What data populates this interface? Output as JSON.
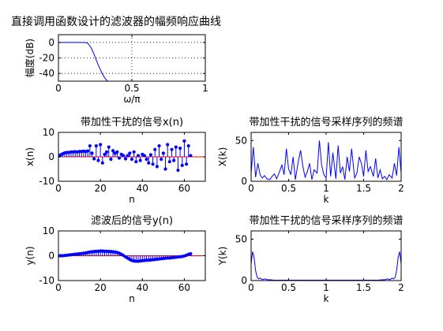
{
  "figure": {
    "suptitle": "直接调用函数设计的滤波器的幅频响应曲线"
  },
  "chart_data": [
    {
      "type": "line",
      "title": "",
      "xlabel": "ω/π",
      "ylabel": "幅度(dB)",
      "xlim": [
        0,
        1
      ],
      "ylim": [
        -50,
        10
      ],
      "xticks": [
        0,
        0.5,
        1
      ],
      "xtick_labels": [
        "0",
        "0.5",
        "1"
      ],
      "yticks": [
        0,
        -20,
        -40
      ],
      "ytick_labels": [
        "0",
        "-20",
        "-40"
      ],
      "grid": true,
      "line_color": "#0000ff",
      "series": [
        {
          "x": [
            0,
            0.02,
            0.06,
            0.1,
            0.14,
            0.18,
            0.2,
            0.22,
            0.24,
            0.26,
            0.28,
            0.3,
            0.32,
            0.34
          ],
          "y": [
            0,
            0,
            0,
            0,
            0,
            0,
            -1,
            -6,
            -14,
            -24,
            -33,
            -41,
            -47,
            -51
          ]
        }
      ]
    },
    {
      "type": "stem",
      "title": "带加性干扰的信号x(n)",
      "xlabel": "n",
      "ylabel": "x(n)",
      "xlim": [
        0,
        70
      ],
      "ylim": [
        -10,
        10
      ],
      "xticks": [
        0,
        20,
        40,
        60
      ],
      "xtick_labels": [
        "0",
        "20",
        "40",
        "60"
      ],
      "yticks": [
        -10,
        0,
        10
      ],
      "ytick_labels": [
        "-10",
        "0",
        "10"
      ],
      "stem_color": "#0000ff",
      "baseline_color": "#ff0000",
      "x": [
        0,
        1,
        2,
        3,
        4,
        5,
        6,
        7,
        8,
        9,
        10,
        11,
        12,
        13,
        14,
        15,
        16,
        17,
        18,
        19,
        20,
        21,
        22,
        23,
        24,
        25,
        26,
        27,
        28,
        29,
        30,
        31,
        32,
        33,
        34,
        35,
        36,
        37,
        38,
        39,
        40,
        41,
        42,
        43,
        44,
        45,
        46,
        47,
        48,
        49,
        50,
        51,
        52,
        53,
        54,
        55,
        56,
        57,
        58,
        59,
        60,
        61,
        62,
        63
      ],
      "values": [
        0.3,
        0.8,
        1.2,
        1.6,
        1.8,
        1.8,
        2.0,
        2.0,
        2.1,
        2.0,
        2.2,
        2.2,
        2.3,
        2.2,
        2.4,
        4.5,
        1.5,
        -0.8,
        4.5,
        -1.5,
        5.0,
        -2.5,
        1.0,
        2.0,
        4.0,
        -1.0,
        2.5,
        1.5,
        2.0,
        -0.5,
        1.0,
        0.5,
        -0.8,
        0.5,
        1.5,
        -1.0,
        2.0,
        -2.0,
        0.5,
        -1.5,
        1.0,
        0.5,
        -1.0,
        -2.5,
        0.8,
        -3.0,
        3.0,
        -4.0,
        4.5,
        -1.0,
        1.5,
        -5.0,
        5.0,
        -2.0,
        3.0,
        -1.5,
        4.0,
        -5.5,
        3.5,
        -3.5,
        6.5,
        -3.0,
        4.5,
        0.5
      ]
    },
    {
      "type": "line",
      "title": "带加性干扰的信号采样序列的频谱",
      "xlabel": "k",
      "ylabel": "X(k)",
      "xlim": [
        0,
        2
      ],
      "ylim": [
        0,
        60
      ],
      "xticks": [
        0,
        0.5,
        1,
        1.5,
        2
      ],
      "xtick_labels": [
        "0",
        "0.5",
        "1",
        "1.5",
        "2"
      ],
      "yticks": [
        0,
        50
      ],
      "ytick_labels": [
        "0",
        "50"
      ],
      "line_color": "#0000ff",
      "series": [
        {
          "x": [
            0,
            0.03,
            0.06,
            0.09,
            0.12,
            0.15,
            0.18,
            0.21,
            0.25,
            0.28,
            0.31,
            0.34,
            0.38,
            0.41,
            0.44,
            0.47,
            0.5,
            0.53,
            0.56,
            0.59,
            0.63,
            0.66,
            0.69,
            0.72,
            0.75,
            0.78,
            0.81,
            0.84,
            0.88,
            0.91,
            0.94,
            0.97,
            1.0,
            1.03,
            1.06,
            1.09,
            1.13,
            1.16,
            1.19,
            1.22,
            1.25,
            1.28,
            1.31,
            1.34,
            1.38,
            1.41,
            1.44,
            1.47,
            1.5,
            1.53,
            1.56,
            1.59,
            1.63,
            1.66,
            1.69,
            1.72,
            1.75,
            1.78,
            1.81,
            1.84,
            1.88,
            1.91,
            1.94,
            1.97,
            2.0
          ],
          "y": [
            10,
            42,
            5,
            22,
            8,
            4,
            7,
            3,
            2,
            6,
            9,
            3,
            12,
            20,
            8,
            40,
            15,
            8,
            30,
            2,
            25,
            38,
            18,
            5,
            12,
            22,
            2,
            14,
            10,
            50,
            20,
            8,
            4,
            48,
            6,
            35,
            3,
            44,
            10,
            18,
            2,
            30,
            12,
            40,
            4,
            10,
            30,
            22,
            6,
            38,
            12,
            18,
            6,
            28,
            4,
            14,
            3,
            6,
            2,
            8,
            4,
            22,
            7,
            42,
            10
          ]
        }
      ]
    },
    {
      "type": "stem",
      "title": "滤波后的信号y(n)",
      "xlabel": "n",
      "ylabel": "y(n)",
      "xlim": [
        0,
        70
      ],
      "ylim": [
        -10,
        10
      ],
      "xticks": [
        0,
        20,
        40,
        60
      ],
      "xtick_labels": [
        "0",
        "20",
        "40",
        "60"
      ],
      "yticks": [
        -10,
        0,
        10
      ],
      "ytick_labels": [
        "-10",
        "0",
        "10"
      ],
      "stem_color": "#0000ff",
      "baseline_color": "#ff0000",
      "x": [
        0,
        1,
        2,
        3,
        4,
        5,
        6,
        7,
        8,
        9,
        10,
        11,
        12,
        13,
        14,
        15,
        16,
        17,
        18,
        19,
        20,
        21,
        22,
        23,
        24,
        25,
        26,
        27,
        28,
        29,
        30,
        31,
        32,
        33,
        34,
        35,
        36,
        37,
        38,
        39,
        40,
        41,
        42,
        43,
        44,
        45,
        46,
        47,
        48,
        49,
        50,
        51,
        52,
        53,
        54,
        55,
        56,
        57,
        58,
        59,
        60,
        61,
        62,
        63
      ],
      "values": [
        0,
        0,
        0,
        0.1,
        0.2,
        0.3,
        0.4,
        0.5,
        0.6,
        0.7,
        0.8,
        0.9,
        1.0,
        1.1,
        1.3,
        1.5,
        1.6,
        1.7,
        1.8,
        1.8,
        1.9,
        1.9,
        1.8,
        1.8,
        1.7,
        1.7,
        1.6,
        1.5,
        1.3,
        1.0,
        0.6,
        0.1,
        -0.5,
        -1.0,
        -1.5,
        -1.9,
        -2.1,
        -2.2,
        -2.2,
        -2.1,
        -2.0,
        -1.9,
        -1.8,
        -1.8,
        -1.7,
        -1.6,
        -1.5,
        -1.4,
        -1.3,
        -1.2,
        -1.1,
        -1.0,
        -0.9,
        -0.9,
        -0.8,
        -0.7,
        -0.6,
        -0.5,
        -0.4,
        -0.3,
        -0.1,
        0.2,
        0.6,
        0.8
      ]
    },
    {
      "type": "line",
      "title": "带加性干扰的信号采样序列的频谱",
      "xlabel": "k",
      "ylabel": "Y(k)",
      "xlim": [
        0,
        2
      ],
      "ylim": [
        0,
        60
      ],
      "xticks": [
        0,
        0.5,
        1,
        1.5,
        2
      ],
      "xtick_labels": [
        "0",
        "0.5",
        "1",
        "1.5",
        "2"
      ],
      "yticks": [
        0,
        50
      ],
      "ytick_labels": [
        "0",
        "50"
      ],
      "line_color": "#0000ff",
      "series": [
        {
          "x": [
            0,
            0.02,
            0.04,
            0.06,
            0.08,
            0.1,
            0.12,
            0.15,
            0.18,
            0.22,
            0.26,
            0.3,
            0.4,
            0.5,
            0.6,
            0.7,
            0.8,
            0.9,
            1.0,
            1.1,
            1.2,
            1.3,
            1.4,
            1.5,
            1.6,
            1.7,
            1.74,
            1.78,
            1.82,
            1.85,
            1.88,
            1.9,
            1.92,
            1.94,
            1.96,
            1.98,
            2.0
          ],
          "y": [
            20,
            35,
            28,
            12,
            4,
            2,
            3,
            1,
            2,
            1,
            1,
            0.5,
            0.5,
            0.5,
            0.5,
            0.5,
            0.5,
            0.5,
            0.5,
            0.5,
            0.5,
            0.5,
            0.5,
            0.5,
            0.5,
            0.5,
            1,
            1,
            2,
            1,
            3,
            2,
            4,
            12,
            28,
            35,
            20
          ]
        }
      ]
    }
  ]
}
